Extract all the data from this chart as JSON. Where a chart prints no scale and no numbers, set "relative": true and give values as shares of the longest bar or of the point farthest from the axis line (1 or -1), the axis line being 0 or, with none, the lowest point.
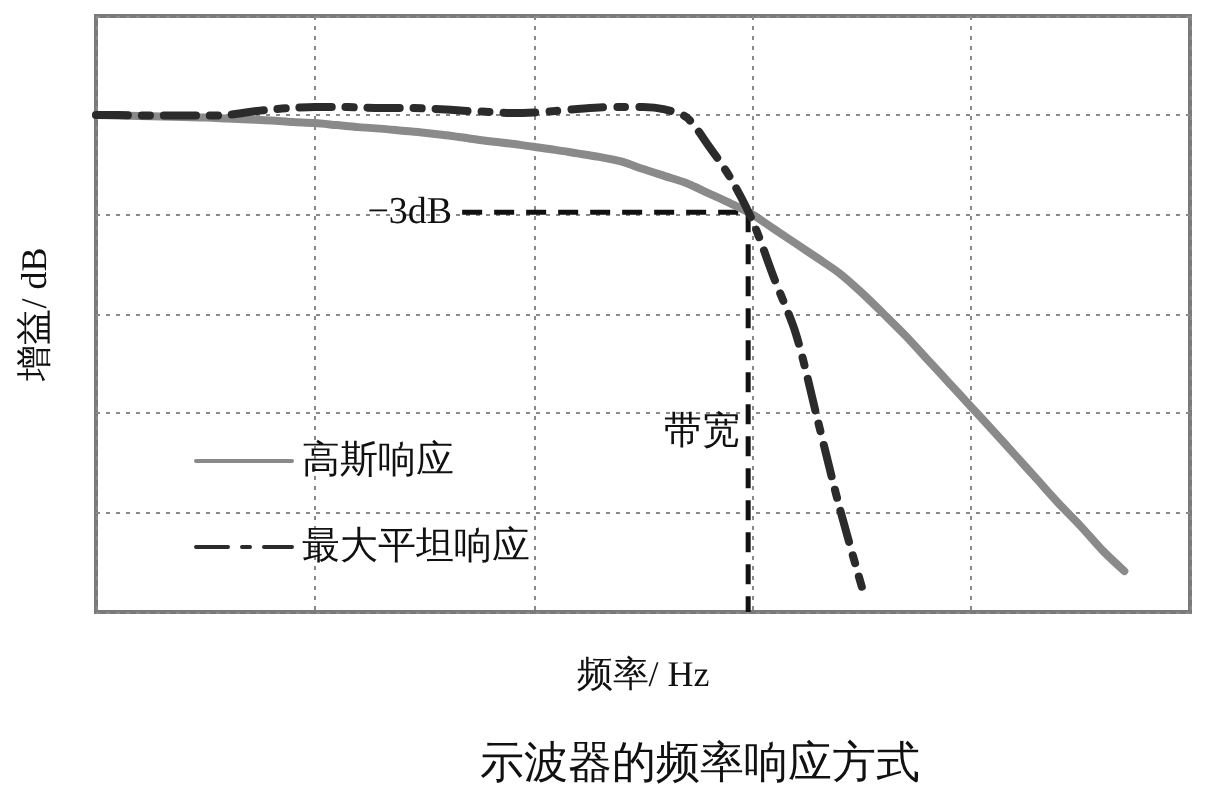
{
  "chart_data": {
    "type": "line",
    "title": "示波器的频率响应方式",
    "xlabel": "频率/ Hz",
    "ylabel": "增益/ dB",
    "relative": true,
    "categories": [
      null,
      null,
      null,
      null,
      null,
      null,
      null,
      null,
      null,
      null,
      null,
      null,
      null,
      null,
      null,
      null,
      null,
      null,
      null,
      null,
      null,
      null,
      null,
      null,
      null,
      null,
      null,
      null,
      null,
      null,
      null,
      null,
      null,
      null,
      null,
      null,
      null,
      null,
      null,
      null,
      null,
      null,
      null,
      null,
      null,
      null,
      null,
      null,
      null,
      null,
      null
    ],
    "series": [
      {
        "name": "高斯响应",
        "color": "#8a8a8a",
        "line_style": "solid",
        "values": [
          0.984,
          0.983,
          0.982,
          0.981,
          0.98,
          0.979,
          0.977,
          0.975,
          0.973,
          0.97,
          0.968,
          0.964,
          0.96,
          0.957,
          0.953,
          0.949,
          0.944,
          0.938,
          0.932,
          0.927,
          0.921,
          0.915,
          0.908,
          0.901,
          0.892,
          0.877,
          0.863,
          0.849,
          0.829,
          0.809,
          0.787,
          0.758,
          0.729,
          0.7,
          0.67,
          0.632,
          0.59,
          0.547,
          0.5,
          0.453,
          0.406,
          0.359,
          0.311,
          0.263,
          0.215,
          0.17,
          0.122,
          0.081,
          null,
          null,
          null
        ]
      },
      {
        "name": "最大平坦响应",
        "color": "#2b2b2b",
        "line_style": "dashdot",
        "values": [
          0.984,
          0.984,
          0.983,
          0.983,
          0.983,
          0.983,
          0.984,
          0.99,
          0.995,
          0.998,
          1.0,
          1.0,
          0.999,
          0.998,
          0.998,
          0.997,
          0.995,
          0.992,
          0.99,
          0.988,
          0.989,
          0.992,
          0.996,
          0.999,
          1.0,
          1.0,
          0.995,
          0.979,
          0.923,
          0.859,
          0.775,
          0.66,
          0.549,
          0.377,
          0.204,
          0.05,
          null,
          null,
          null,
          null,
          null,
          null,
          null,
          null,
          null,
          null,
          null,
          null,
          null,
          null,
          null
        ]
      }
    ],
    "annotations": [
      "−3dB",
      "带宽"
    ],
    "grid": true,
    "legend": "bottom left",
    "marker": "none"
  }
}
